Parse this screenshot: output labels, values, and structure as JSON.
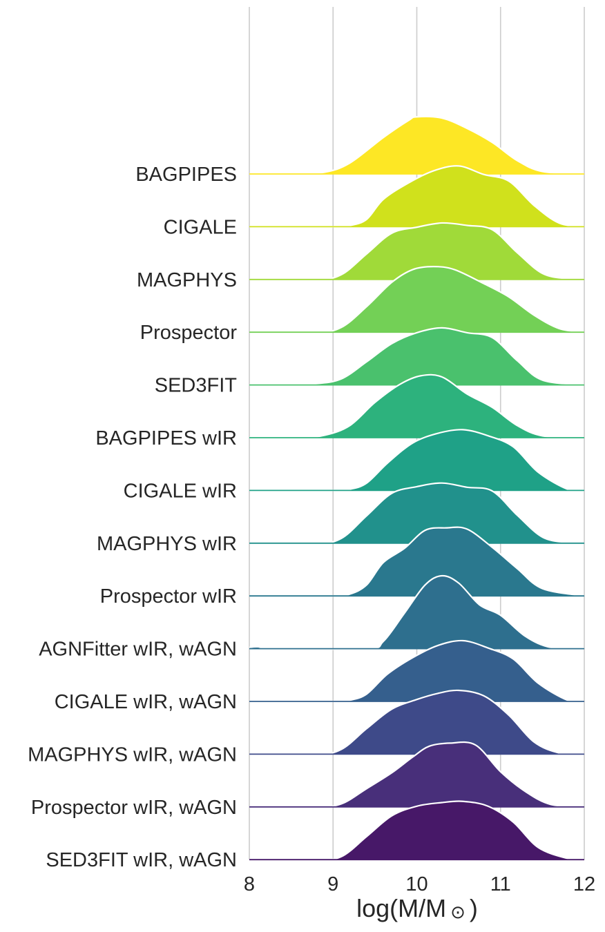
{
  "chart_data": {
    "type": "ridgeline",
    "xlabel": "log(M/M",
    "xlabel_symbol": "⊙",
    "xlabel_close": ")",
    "xlim": [
      8,
      12
    ],
    "xticks": [
      "8",
      "9",
      "10",
      "11",
      "12"
    ],
    "grid": "vertical",
    "series": [
      {
        "name": "BAGPIPES",
        "color": "#fde725",
        "density": [
          [
            8,
            0
          ],
          [
            8.5,
            0
          ],
          [
            8.9,
            0.03
          ],
          [
            9.2,
            0.18
          ],
          [
            9.6,
            0.6
          ],
          [
            9.9,
            0.88
          ],
          [
            10.0,
            0.94
          ],
          [
            10.3,
            0.92
          ],
          [
            10.6,
            0.75
          ],
          [
            10.9,
            0.52
          ],
          [
            11.2,
            0.22
          ],
          [
            11.5,
            0.04
          ],
          [
            12,
            0
          ]
        ]
      },
      {
        "name": "CIGALE",
        "color": "#d0e11c",
        "density": [
          [
            8,
            0
          ],
          [
            9.0,
            0
          ],
          [
            9.2,
            0.02
          ],
          [
            9.4,
            0.12
          ],
          [
            9.6,
            0.45
          ],
          [
            9.9,
            0.72
          ],
          [
            10.2,
            0.92
          ],
          [
            10.5,
            1.0
          ],
          [
            10.8,
            0.86
          ],
          [
            11.1,
            0.75
          ],
          [
            11.4,
            0.35
          ],
          [
            11.7,
            0.06
          ],
          [
            12,
            0
          ]
        ]
      },
      {
        "name": "MAGPHYS",
        "color": "#a0da39",
        "density": [
          [
            8,
            0
          ],
          [
            8.8,
            0
          ],
          [
            9.1,
            0.08
          ],
          [
            9.4,
            0.42
          ],
          [
            9.7,
            0.76
          ],
          [
            10.0,
            0.86
          ],
          [
            10.3,
            0.93
          ],
          [
            10.6,
            0.89
          ],
          [
            10.9,
            0.82
          ],
          [
            11.2,
            0.44
          ],
          [
            11.5,
            0.1
          ],
          [
            11.8,
            0.01
          ],
          [
            12,
            0
          ]
        ]
      },
      {
        "name": "Prospector",
        "color": "#73d056",
        "density": [
          [
            8,
            0
          ],
          [
            8.8,
            0
          ],
          [
            9.1,
            0.08
          ],
          [
            9.4,
            0.42
          ],
          [
            9.7,
            0.82
          ],
          [
            9.95,
            1.03
          ],
          [
            10.2,
            1.08
          ],
          [
            10.45,
            1.03
          ],
          [
            10.8,
            0.8
          ],
          [
            11.1,
            0.58
          ],
          [
            11.4,
            0.28
          ],
          [
            11.7,
            0.06
          ],
          [
            12,
            0
          ]
        ]
      },
      {
        "name": "SED3FIT",
        "color": "#4ac16d",
        "density": [
          [
            8,
            0
          ],
          [
            8.5,
            0
          ],
          [
            8.8,
            0.02
          ],
          [
            9.1,
            0.1
          ],
          [
            9.4,
            0.38
          ],
          [
            9.7,
            0.68
          ],
          [
            10.0,
            0.86
          ],
          [
            10.3,
            0.94
          ],
          [
            10.6,
            0.86
          ],
          [
            10.9,
            0.78
          ],
          [
            11.2,
            0.4
          ],
          [
            11.5,
            0.08
          ],
          [
            12,
            0
          ]
        ]
      },
      {
        "name": "BAGPIPES wIR",
        "color": "#2db27d",
        "density": [
          [
            8,
            0
          ],
          [
            8.6,
            0
          ],
          [
            8.9,
            0.04
          ],
          [
            9.2,
            0.2
          ],
          [
            9.5,
            0.58
          ],
          [
            9.8,
            0.88
          ],
          [
            10.05,
            1.02
          ],
          [
            10.3,
            1.0
          ],
          [
            10.6,
            0.72
          ],
          [
            10.9,
            0.5
          ],
          [
            11.2,
            0.2
          ],
          [
            11.5,
            0.03
          ],
          [
            12,
            0
          ]
        ]
      },
      {
        "name": "CIGALE wIR",
        "color": "#1fa187",
        "density": [
          [
            8,
            0
          ],
          [
            9.0,
            0
          ],
          [
            9.2,
            0.02
          ],
          [
            9.4,
            0.12
          ],
          [
            9.65,
            0.45
          ],
          [
            9.95,
            0.78
          ],
          [
            10.25,
            0.94
          ],
          [
            10.55,
            1.0
          ],
          [
            10.85,
            0.9
          ],
          [
            11.15,
            0.72
          ],
          [
            11.45,
            0.3
          ],
          [
            11.8,
            0.02
          ],
          [
            12,
            0
          ]
        ]
      },
      {
        "name": "MAGPHYS wIR",
        "color": "#21918c",
        "density": [
          [
            8,
            0
          ],
          [
            8.8,
            0
          ],
          [
            9.1,
            0.08
          ],
          [
            9.4,
            0.45
          ],
          [
            9.7,
            0.82
          ],
          [
            10.0,
            0.93
          ],
          [
            10.3,
            0.99
          ],
          [
            10.6,
            0.92
          ],
          [
            10.9,
            0.86
          ],
          [
            11.2,
            0.46
          ],
          [
            11.5,
            0.1
          ],
          [
            11.8,
            0.01
          ],
          [
            12,
            0
          ]
        ]
      },
      {
        "name": "Prospector wIR",
        "color": "#2a788e",
        "density": [
          [
            8,
            0
          ],
          [
            9.0,
            0
          ],
          [
            9.2,
            0.03
          ],
          [
            9.4,
            0.18
          ],
          [
            9.6,
            0.55
          ],
          [
            9.85,
            0.78
          ],
          [
            10.1,
            1.08
          ],
          [
            10.35,
            1.12
          ],
          [
            10.6,
            1.1
          ],
          [
            10.9,
            0.8
          ],
          [
            11.2,
            0.45
          ],
          [
            11.5,
            0.12
          ],
          [
            12,
            0
          ]
        ]
      },
      {
        "name": "AGNFitter wIR, wAGN",
        "color": "#2e6f8e",
        "density": [
          [
            8,
            0.02
          ],
          [
            8.1,
            0.03
          ],
          [
            8.3,
            0.005
          ],
          [
            9.4,
            0
          ],
          [
            9.6,
            0.12
          ],
          [
            9.85,
            0.58
          ],
          [
            10.1,
            1.05
          ],
          [
            10.3,
            1.2
          ],
          [
            10.5,
            1.08
          ],
          [
            10.75,
            0.72
          ],
          [
            11.0,
            0.55
          ],
          [
            11.3,
            0.2
          ],
          [
            11.6,
            0.02
          ],
          [
            12,
            0
          ]
        ]
      },
      {
        "name": "CIGALE wIR, wAGN",
        "color": "#355f8d",
        "density": [
          [
            8,
            0
          ],
          [
            9.0,
            0
          ],
          [
            9.2,
            0.02
          ],
          [
            9.4,
            0.12
          ],
          [
            9.65,
            0.45
          ],
          [
            9.95,
            0.72
          ],
          [
            10.25,
            0.92
          ],
          [
            10.55,
            1.0
          ],
          [
            10.85,
            0.88
          ],
          [
            11.15,
            0.7
          ],
          [
            11.45,
            0.3
          ],
          [
            11.8,
            0.02
          ],
          [
            12,
            0
          ]
        ]
      },
      {
        "name": "MAGPHYS wIR, wAGN",
        "color": "#3e4a89",
        "density": [
          [
            8,
            0
          ],
          [
            8.8,
            0
          ],
          [
            9.1,
            0.08
          ],
          [
            9.4,
            0.42
          ],
          [
            9.7,
            0.74
          ],
          [
            10.0,
            0.9
          ],
          [
            10.25,
            1.0
          ],
          [
            10.5,
            1.05
          ],
          [
            10.8,
            0.96
          ],
          [
            11.1,
            0.64
          ],
          [
            11.4,
            0.2
          ],
          [
            11.7,
            0.02
          ],
          [
            12,
            0
          ]
        ]
      },
      {
        "name": "Prospector wIR, wAGN",
        "color": "#482f7a",
        "density": [
          [
            8,
            0
          ],
          [
            8.8,
            0
          ],
          [
            9.1,
            0.05
          ],
          [
            9.4,
            0.3
          ],
          [
            9.7,
            0.56
          ],
          [
            9.95,
            0.82
          ],
          [
            10.15,
            1.0
          ],
          [
            10.4,
            1.05
          ],
          [
            10.7,
            1.02
          ],
          [
            11.0,
            0.58
          ],
          [
            11.3,
            0.25
          ],
          [
            11.6,
            0.04
          ],
          [
            12,
            0
          ]
        ]
      },
      {
        "name": "SED3FIT wIR, wAGN",
        "color": "#471868",
        "density": [
          [
            8,
            0
          ],
          [
            8.8,
            0
          ],
          [
            9.1,
            0.05
          ],
          [
            9.4,
            0.38
          ],
          [
            9.7,
            0.72
          ],
          [
            10.0,
            0.88
          ],
          [
            10.3,
            0.94
          ],
          [
            10.55,
            0.96
          ],
          [
            10.85,
            0.88
          ],
          [
            11.15,
            0.62
          ],
          [
            11.45,
            0.2
          ],
          [
            11.8,
            0.02
          ],
          [
            12,
            0
          ]
        ]
      }
    ]
  }
}
